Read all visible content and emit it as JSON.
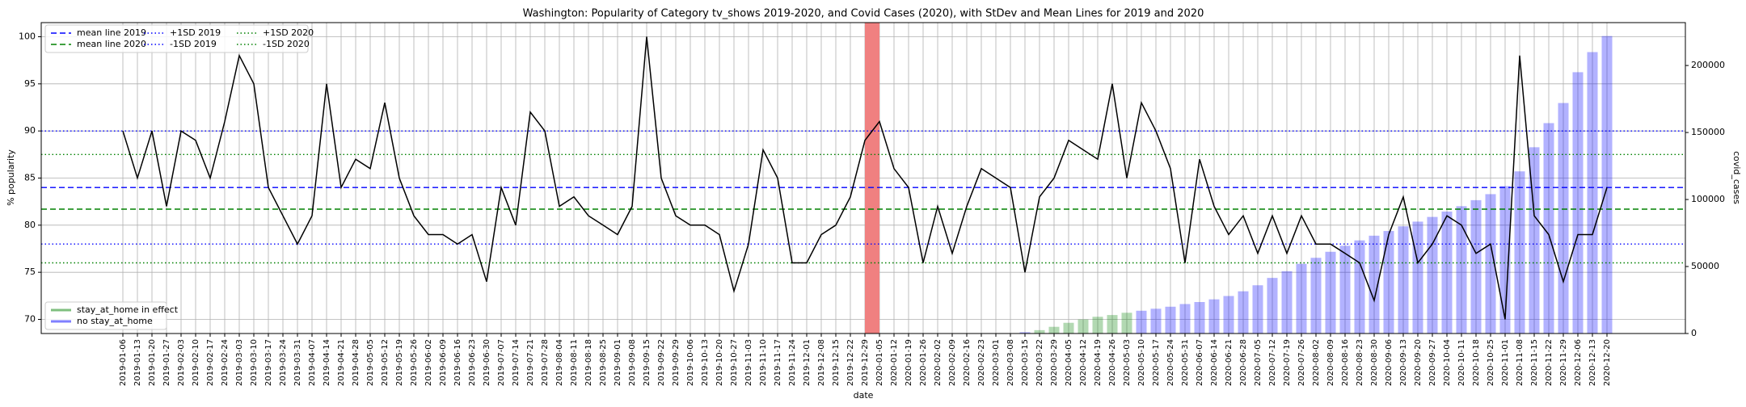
{
  "chart_data": {
    "type": "line_bar",
    "title": "Washington: Popularity of Category tv_shows 2019-2020, and Covid Cases (2020), with StDev and Mean Lines for 2019 and 2020",
    "xlabel": "date",
    "ylabel": "% popularity",
    "y2label": "covid_cases",
    "categories": [
      "2019-01-06",
      "2019-01-13",
      "2019-01-20",
      "2019-01-27",
      "2019-02-03",
      "2019-02-10",
      "2019-02-17",
      "2019-02-24",
      "2019-03-03",
      "2019-03-10",
      "2019-03-17",
      "2019-03-24",
      "2019-03-31",
      "2019-04-07",
      "2019-04-14",
      "2019-04-21",
      "2019-04-28",
      "2019-05-05",
      "2019-05-12",
      "2019-05-19",
      "2019-05-26",
      "2019-06-02",
      "2019-06-09",
      "2019-06-16",
      "2019-06-23",
      "2019-06-30",
      "2019-07-07",
      "2019-07-14",
      "2019-07-21",
      "2019-07-28",
      "2019-08-04",
      "2019-08-11",
      "2019-08-18",
      "2019-08-25",
      "2019-09-01",
      "2019-09-08",
      "2019-09-15",
      "2019-09-22",
      "2019-09-29",
      "2019-10-06",
      "2019-10-13",
      "2019-10-20",
      "2019-10-27",
      "2019-11-03",
      "2019-11-10",
      "2019-11-17",
      "2019-11-24",
      "2019-12-01",
      "2019-12-08",
      "2019-12-15",
      "2019-12-22",
      "2019-12-29",
      "2020-01-05",
      "2020-01-12",
      "2020-01-19",
      "2020-01-26",
      "2020-02-02",
      "2020-02-09",
      "2020-02-16",
      "2020-02-23",
      "2020-03-01",
      "2020-03-08",
      "2020-03-15",
      "2020-03-22",
      "2020-03-29",
      "2020-04-05",
      "2020-04-12",
      "2020-04-19",
      "2020-04-26",
      "2020-05-03",
      "2020-05-10",
      "2020-05-17",
      "2020-05-24",
      "2020-05-31",
      "2020-06-07",
      "2020-06-14",
      "2020-06-21",
      "2020-06-28",
      "2020-07-05",
      "2020-07-12",
      "2020-07-19",
      "2020-07-26",
      "2020-08-02",
      "2020-08-09",
      "2020-08-16",
      "2020-08-23",
      "2020-08-30",
      "2020-09-06",
      "2020-09-13",
      "2020-09-20",
      "2020-09-27",
      "2020-10-04",
      "2020-10-11",
      "2020-10-18",
      "2020-10-25",
      "2020-11-01",
      "2020-11-08",
      "2020-11-15",
      "2020-11-22",
      "2020-11-29",
      "2020-12-06",
      "2020-12-13",
      "2020-12-20"
    ],
    "line": {
      "color": "#000000",
      "values": [
        90,
        85,
        90,
        82,
        90,
        89,
        85,
        91,
        98,
        95,
        84,
        81,
        78,
        81,
        95,
        84,
        87,
        86,
        93,
        85,
        81,
        79,
        79,
        78,
        79,
        74,
        84,
        80,
        92,
        90,
        82,
        83,
        81,
        80,
        79,
        82,
        100,
        85,
        81,
        80,
        80,
        79,
        73,
        78,
        88,
        85,
        76,
        76,
        79,
        80,
        83,
        89,
        91,
        86,
        84,
        76,
        82,
        77,
        82,
        86,
        85,
        84,
        75,
        83,
        85,
        89,
        88,
        87,
        95,
        85,
        93,
        90,
        86,
        76,
        87,
        82,
        79,
        81,
        77,
        81,
        77,
        81,
        78,
        78,
        77,
        76,
        72,
        79,
        83,
        76,
        78,
        81,
        80,
        77,
        78,
        70,
        98,
        81,
        79,
        74,
        79,
        79,
        84
      ]
    },
    "bar_series": [
      {
        "name": "stay_at_home in effect",
        "color": "#008000",
        "values": [
          null,
          null,
          null,
          null,
          null,
          null,
          null,
          null,
          null,
          null,
          null,
          null,
          null,
          null,
          null,
          null,
          null,
          null,
          null,
          null,
          null,
          null,
          null,
          null,
          null,
          null,
          null,
          null,
          null,
          null,
          null,
          null,
          null,
          null,
          null,
          null,
          null,
          null,
          null,
          null,
          null,
          null,
          null,
          null,
          null,
          null,
          null,
          null,
          null,
          null,
          null,
          null,
          null,
          null,
          null,
          null,
          null,
          null,
          null,
          null,
          null,
          null,
          null,
          2500,
          5000,
          8000,
          10500,
          12500,
          13800,
          15500,
          null,
          null,
          null,
          null,
          null,
          null,
          null,
          null,
          null,
          null,
          null,
          null,
          null,
          null,
          null,
          null,
          null,
          null,
          null,
          null,
          null,
          null,
          null,
          null,
          null,
          null,
          null,
          null,
          null,
          null,
          null,
          null,
          null
        ]
      },
      {
        "name": "no stay_at_home",
        "color": "#0000ff",
        "values": [
          null,
          null,
          null,
          null,
          null,
          null,
          null,
          null,
          null,
          null,
          null,
          null,
          null,
          null,
          null,
          null,
          null,
          null,
          null,
          null,
          null,
          null,
          null,
          null,
          null,
          null,
          null,
          null,
          null,
          null,
          null,
          null,
          null,
          null,
          null,
          null,
          null,
          null,
          null,
          null,
          null,
          null,
          null,
          null,
          null,
          null,
          null,
          null,
          null,
          null,
          null,
          null,
          null,
          null,
          null,
          null,
          null,
          null,
          null,
          null,
          null,
          null,
          1000,
          null,
          null,
          null,
          null,
          null,
          null,
          null,
          17000,
          18500,
          20000,
          22000,
          23500,
          25500,
          28000,
          31500,
          36000,
          41500,
          46500,
          52000,
          56500,
          61000,
          65500,
          69500,
          73000,
          76500,
          80000,
          83500,
          87000,
          91000,
          95000,
          99500,
          104000,
          110000,
          121000,
          139000,
          157000,
          172000,
          195000,
          210000,
          222000
        ]
      }
    ],
    "bar_alpha": 0.3,
    "hlines": [
      {
        "name": "mean line 2019",
        "value": 84,
        "color": "#0000ff",
        "style": "dashed"
      },
      {
        "name": "mean line 2020",
        "value": 81.7,
        "color": "#008000",
        "style": "dashed"
      },
      {
        "name": "+1SD 2019",
        "value": 90,
        "color": "#0000ff",
        "style": "dotted"
      },
      {
        "name": "-1SD 2019",
        "value": 78,
        "color": "#0000ff",
        "style": "dotted"
      },
      {
        "name": "+1SD 2020",
        "value": 87.5,
        "color": "#008000",
        "style": "dotted"
      },
      {
        "name": "-1SD 2020",
        "value": 76,
        "color": "#008000",
        "style": "dotted"
      }
    ],
    "span": {
      "from": "2019-12-29",
      "to": "2020-01-05",
      "color": "#f08080"
    },
    "ylim": [
      68.5,
      101.5
    ],
    "yticks": [
      70,
      75,
      80,
      85,
      90,
      95,
      100
    ],
    "y2lim": [
      0,
      232000
    ],
    "y2ticks": [
      0,
      50000,
      100000,
      150000,
      200000
    ],
    "grid": true,
    "line_legend": "upper left",
    "bar_legend": "lower left"
  }
}
